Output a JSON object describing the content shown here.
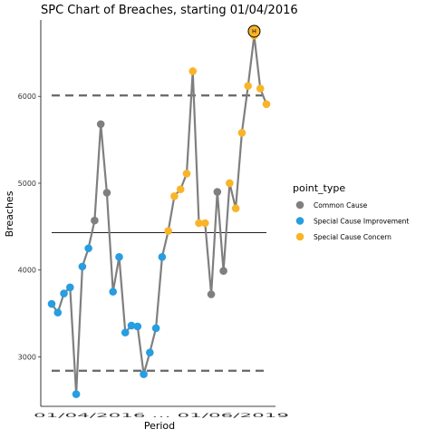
{
  "chart_data": {
    "type": "line",
    "title": "SPC Chart of Breaches, starting 01/04/2016",
    "xlabel": "Period",
    "ylabel": "Breaches",
    "ylim": [
      2430,
      6880
    ],
    "yticks": [
      3000,
      4000,
      5000,
      6000
    ],
    "x_tick_text": "01/04/2016 … 01/06/2019",
    "mean": 4430,
    "upper_limit": 6010,
    "lower_limit": 2840,
    "legend": {
      "title": "point_type",
      "placement": "right",
      "entries": [
        {
          "label": "Common Cause",
          "color": "#7f7f7f"
        },
        {
          "label": "Special Cause Improvement",
          "color": "#289de0"
        },
        {
          "label": "Special Cause Concern",
          "color": "#fab428"
        }
      ]
    },
    "highlight_label": "H",
    "colors": {
      "line": "#7f7f7f",
      "limit": "#666666",
      "mean": "#000000",
      "common": "#7f7f7f",
      "improvement": "#289de0",
      "concern": "#fab428"
    },
    "series": [
      {
        "values": [
          3610,
          3510,
          3730,
          3800,
          2570,
          4040,
          4250,
          4570,
          5680,
          4890,
          3750,
          4150,
          3280,
          3360,
          3350,
          2800,
          3050,
          3330,
          4150,
          4450,
          4850,
          4930,
          5110,
          6290,
          4540,
          4540,
          3720,
          4900,
          3990,
          5000,
          4710,
          5580,
          6120,
          6700,
          6090,
          5910
        ],
        "point_types": [
          "improvement",
          "improvement",
          "improvement",
          "improvement",
          "improvement",
          "improvement",
          "improvement",
          "common",
          "common",
          "common",
          "improvement",
          "improvement",
          "improvement",
          "improvement",
          "improvement",
          "improvement",
          "improvement",
          "improvement",
          "improvement",
          "concern",
          "concern",
          "concern",
          "concern",
          "concern",
          "concern",
          "concern",
          "common",
          "common",
          "common",
          "concern",
          "concern",
          "concern",
          "concern",
          "concern",
          "concern",
          "concern"
        ],
        "highlight_index": 33,
        "highlight_value": 6750
      }
    ]
  }
}
